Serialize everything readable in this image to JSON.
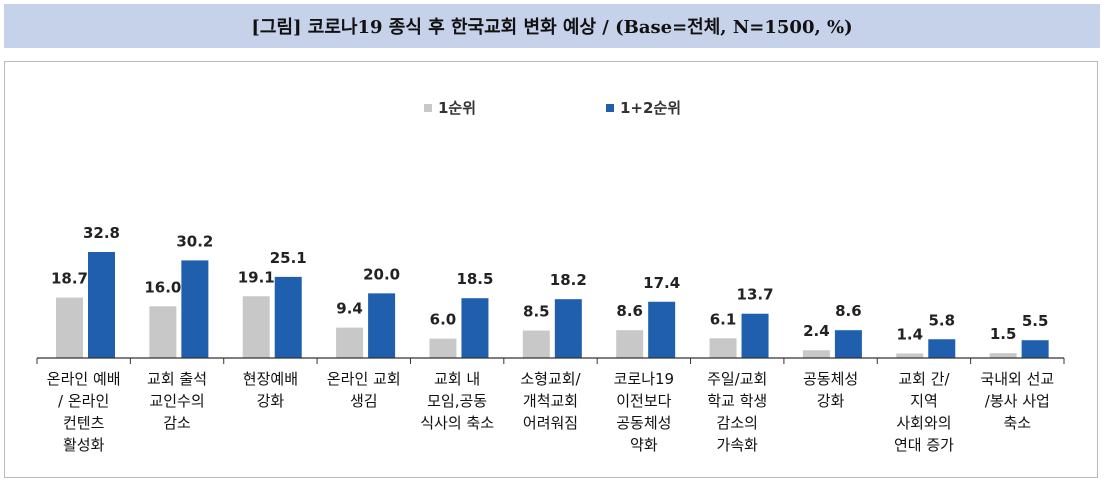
{
  "title": "[그림] 코로나19 종식 후 한국교회 변화 예상 / (Base=전체, N=1500, %)",
  "colors": {
    "series1": "#c8c8c8",
    "series2": "#1f5fad",
    "axis": "#333333",
    "title_bg": "#c6d1ea"
  },
  "chart_data": {
    "type": "bar",
    "title": "[그림] 코로나19 종식 후 한국교회 변화 예상 / (Base=전체, N=1500, %)",
    "categories": [
      [
        "온라인 예배",
        "/ 온라인",
        "컨텐츠",
        "활성화"
      ],
      [
        "교회 출석",
        "교인수의",
        "감소"
      ],
      [
        "현장예배",
        "강화"
      ],
      [
        "온라인 교회",
        "생김"
      ],
      [
        "교회 내",
        "모임,공동",
        "식사의 축소"
      ],
      [
        "소형교회/",
        "개척교회",
        "어려워짐"
      ],
      [
        "코로나19",
        "이전보다",
        "공동체성",
        "약화"
      ],
      [
        "주일/교회",
        "학교 학생",
        "감소의",
        "가속화"
      ],
      [
        "공동체성",
        "강화"
      ],
      [
        "교회 간/",
        "지역",
        "사회와의",
        "연대 증가"
      ],
      [
        "국내외 선교",
        "/봉사 사업",
        "축소"
      ]
    ],
    "series": [
      {
        "name": "1순위",
        "values": [
          18.7,
          16.0,
          19.1,
          9.4,
          6.0,
          8.5,
          8.6,
          6.1,
          2.4,
          1.4,
          1.5
        ]
      },
      {
        "name": "1+2순위",
        "values": [
          32.8,
          30.2,
          25.1,
          20.0,
          18.5,
          18.2,
          17.4,
          13.7,
          8.6,
          5.8,
          5.5
        ]
      }
    ],
    "ylim": [
      0,
      35
    ],
    "legend_position": "top-center",
    "grid": false
  }
}
